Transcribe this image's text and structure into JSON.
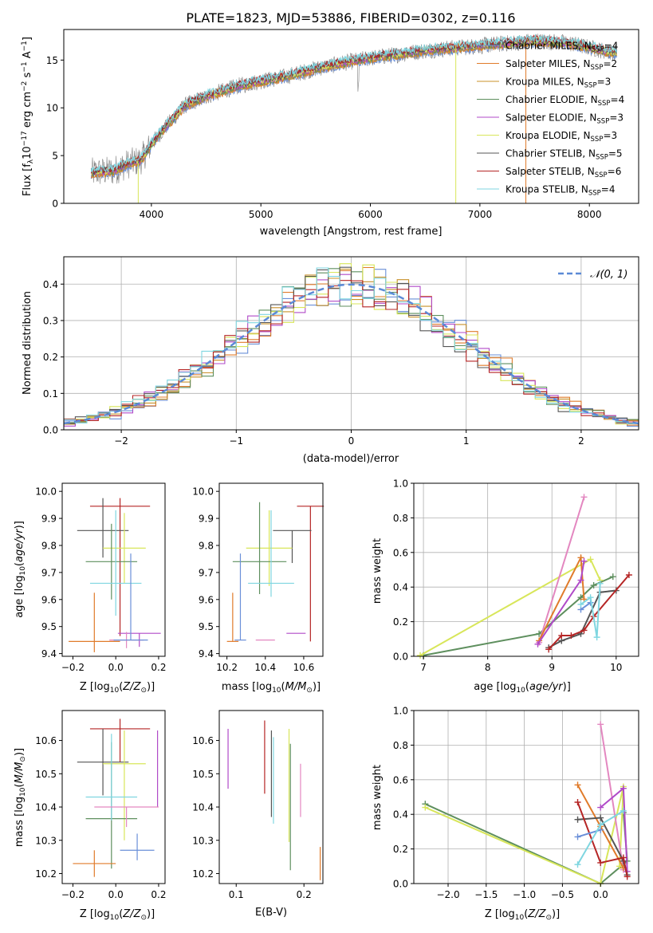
{
  "chart_data": [
    {
      "id": "spectrum",
      "type": "line",
      "title": "PLATE=1823, MJD=53886, FIBERID=0302, z=0.116",
      "xlabel": "wavelength [Angstrom, rest frame]",
      "ylabel": "Flux [f$_\\lambda$10$^{-17}$ erg cm$^{-2}$ s$^{-1}$ A$^{-1}$]",
      "ylabel_parts": {
        "a": "Flux [f",
        "b": "λ",
        "c": "10",
        "d": "−17",
        "e": " erg cm",
        "f": "−2",
        "g": " s",
        "h": "−1",
        "i": " A",
        "j": "−1",
        "k": "]"
      },
      "xlim": [
        3200,
        8450
      ],
      "ylim": [
        0,
        18.2
      ],
      "xticks": [
        4000,
        5000,
        6000,
        7000,
        8000
      ],
      "yticks": [
        0,
        5,
        10,
        15
      ],
      "legend_position": "upper right",
      "series": [
        {
          "name": "Chabrier MILES, N$_{SSP}$=4",
          "label": "Chabrier MILES, N",
          "sub": "SSP",
          "n": "=4",
          "color": "#6a8fd8"
        },
        {
          "name": "Salpeter MILES, N$_{SSP}$=2",
          "label": "Salpeter MILES, N",
          "sub": "SSP",
          "n": "=2",
          "color": "#e07b2a"
        },
        {
          "name": "Kroupa MILES, N$_{SSP}$=3",
          "label": "Kroupa MILES, N",
          "sub": "SSP",
          "n": "=3",
          "color": "#c8902a"
        },
        {
          "name": "Chabrier ELODIE, N$_{SSP}$=4",
          "label": "Chabrier ELODIE, N",
          "sub": "SSP",
          "n": "=4",
          "color": "#5e8f5e"
        },
        {
          "name": "Salpeter ELODIE, N$_{SSP}$=3",
          "label": "Salpeter ELODIE, N",
          "sub": "SSP",
          "n": "=3",
          "color": "#b04ac8"
        },
        {
          "name": "Kroupa ELODIE, N$_{SSP}$=3",
          "label": "Kroupa ELODIE, N",
          "sub": "SSP",
          "n": "=3",
          "color": "#d8e65a"
        },
        {
          "name": "Chabrier STELIB, N$_{SSP}$=5",
          "label": "Chabrier STELIB, N",
          "sub": "SSP",
          "n": "=5",
          "color": "#555555"
        },
        {
          "name": "Salpeter STELIB, N$_{SSP}$=6",
          "label": "Salpeter STELIB, N",
          "sub": "SSP",
          "n": "=6",
          "color": "#b52525"
        },
        {
          "name": "Kroupa STELIB, N$_{SSP}$=4",
          "label": "Kroupa STELIB, N",
          "sub": "SSP",
          "n": "=4",
          "color": "#7fd6e0"
        }
      ],
      "continuum_points": {
        "x": [
          3450,
          3650,
          3800,
          3900,
          4000,
          4100,
          4300,
          4500,
          4800,
          5000,
          5200,
          5500,
          5800,
          6000,
          6200,
          6500,
          6800,
          7000,
          7200,
          7500,
          7800,
          8000,
          8200
        ],
        "y": [
          3.2,
          3.4,
          4.2,
          4.5,
          6.2,
          7.6,
          10.2,
          11.2,
          12.3,
          12.8,
          13.2,
          14.1,
          14.8,
          15.2,
          15.5,
          16.0,
          16.3,
          16.5,
          16.7,
          17.0,
          16.8,
          16.3,
          15.8
        ]
      },
      "data_color": "#808080"
    },
    {
      "id": "residuals",
      "type": "line",
      "xlabel": "(data-model)/error",
      "ylabel": "Normed distribution",
      "xlim": [
        -2.5,
        2.5
      ],
      "ylim": [
        0,
        0.475
      ],
      "xticks": [
        -2,
        -1,
        0,
        1,
        2
      ],
      "yticks": [
        0.0,
        0.1,
        0.2,
        0.3,
        0.4
      ],
      "grid": true,
      "legend": "𝒩(0, 1)",
      "legend_position": "upper right",
      "reference_curve": {
        "mu": 0,
        "sigma": 1,
        "color": "#5b8ad6"
      },
      "bin_width": 0.1
    },
    {
      "id": "age_vs_Z",
      "type": "scatter",
      "xlabel": "Z [log$_{10}$($Z/Z_\\odot$)]",
      "ylabel": "age  [log$_{10}$($age/yr$)]",
      "xlim": [
        -0.25,
        0.23
      ],
      "ylim": [
        9.39,
        10.03
      ],
      "xticks": [
        -0.2,
        0.0,
        0.2
      ],
      "yticks": [
        9.4,
        9.5,
        9.6,
        9.7,
        9.8,
        9.9,
        10.0
      ],
      "crosses": [
        {
          "x": 0.02,
          "xerr": 0.14,
          "y": 9.945,
          "yerr": [
            0.48,
            0.03
          ],
          "color": "#b52525"
        },
        {
          "x": -0.06,
          "xerr": 0.12,
          "y": 9.855,
          "yerr": [
            0.1,
            0.12
          ],
          "color": "#555555"
        },
        {
          "x": 0.04,
          "xerr": 0.1,
          "y": 9.79,
          "yerr": [
            0.13,
            0.13
          ],
          "color": "#d8e65a"
        },
        {
          "x": -0.02,
          "xerr": 0.12,
          "y": 9.74,
          "yerr": [
            0.14,
            0.14
          ],
          "color": "#5e8f5e"
        },
        {
          "x": 0.0,
          "xerr": 0.12,
          "y": 9.66,
          "yerr": [
            0.12,
            0.27
          ],
          "color": "#7fd6e0"
        },
        {
          "x": 0.11,
          "xerr": 0.1,
          "y": 9.475,
          "yerr": [
            0.05,
            0.0
          ],
          "color": "#b04ac8"
        },
        {
          "x": -0.1,
          "xerr": 0.12,
          "y": 9.445,
          "yerr": [
            0.04,
            0.18
          ],
          "color": "#e07b2a"
        },
        {
          "x": 0.05,
          "xerr": 0.08,
          "y": 9.45,
          "yerr": [
            0.03,
            0.03
          ],
          "color": "#e387c0"
        },
        {
          "x": 0.07,
          "xerr": 0.08,
          "y": 9.45,
          "yerr": [
            0.0,
            0.32
          ],
          "color": "#6a8fd8"
        }
      ]
    },
    {
      "id": "age_vs_mass",
      "type": "scatter",
      "xlabel": "mass [log$_{10}$($M/M_\\odot$)]",
      "xlim": [
        10.16,
        10.7
      ],
      "ylim": [
        9.39,
        10.03
      ],
      "xticks": [
        10.2,
        10.4,
        10.6
      ],
      "yticks": [
        9.4,
        9.5,
        9.6,
        9.7,
        9.8,
        9.9,
        10.0
      ],
      "crosses": [
        {
          "x": 10.635,
          "xerr": 0.07,
          "y": 9.945,
          "yerr": [
            0.5,
            0.0
          ],
          "color": "#b52525"
        },
        {
          "x": 10.54,
          "xerr": 0.1,
          "y": 9.855,
          "yerr": [
            0.12,
            0.0
          ],
          "color": "#555555"
        },
        {
          "x": 10.42,
          "xerr": 0.12,
          "y": 9.79,
          "yerr": [
            0.14,
            0.14
          ],
          "color": "#d8e65a"
        },
        {
          "x": 10.37,
          "xerr": 0.14,
          "y": 9.74,
          "yerr": [
            0.12,
            0.22
          ],
          "color": "#5e8f5e"
        },
        {
          "x": 10.43,
          "xerr": 0.12,
          "y": 9.66,
          "yerr": [
            0.05,
            0.27
          ],
          "color": "#7fd6e0"
        },
        {
          "x": 10.56,
          "xerr": 0.05,
          "y": 9.475,
          "yerr": [
            0.0,
            0.0
          ],
          "color": "#b04ac8"
        },
        {
          "x": 10.23,
          "xerr": 0.03,
          "y": 9.445,
          "yerr": [
            0.0,
            0.18
          ],
          "color": "#e07b2a"
        },
        {
          "x": 10.4,
          "xerr": 0.05,
          "y": 9.45,
          "yerr": [
            0.0,
            0.0
          ],
          "color": "#e387c0"
        },
        {
          "x": 10.27,
          "xerr": 0.03,
          "y": 9.45,
          "yerr": [
            0.0,
            0.32
          ],
          "color": "#6a8fd8"
        }
      ]
    },
    {
      "id": "mass_weight_vs_age",
      "type": "line",
      "xlabel": "age  [log$_{10}$($age/yr$)]",
      "ylabel": "mass weight",
      "xlim": [
        6.85,
        10.35
      ],
      "ylim": [
        0,
        1.0
      ],
      "xticks": [
        7,
        8,
        9,
        10
      ],
      "yticks": [
        0.0,
        0.2,
        0.4,
        0.6,
        0.8,
        1.0
      ],
      "grid": true,
      "series": [
        {
          "color": "#5e8f5e",
          "x": [
            7.0,
            8.8,
            9.45,
            9.65,
            9.95
          ],
          "y": [
            0.005,
            0.13,
            0.34,
            0.41,
            0.46
          ]
        },
        {
          "color": "#d8e65a",
          "x": [
            6.95,
            9.6,
            9.75
          ],
          "y": [
            0.005,
            0.56,
            0.44
          ]
        },
        {
          "color": "#e387c0",
          "x": [
            8.8,
            9.5
          ],
          "y": [
            0.08,
            0.92
          ]
        },
        {
          "color": "#e07b2a",
          "x": [
            8.8,
            9.45,
            9.5
          ],
          "y": [
            0.09,
            0.57,
            0.33
          ]
        },
        {
          "color": "#b04ac8",
          "x": [
            8.78,
            9.45,
            9.5
          ],
          "y": [
            0.07,
            0.44,
            0.55
          ]
        },
        {
          "color": "#555555",
          "x": [
            8.95,
            9.15,
            9.45,
            9.75,
            10.0
          ],
          "y": [
            0.05,
            0.09,
            0.13,
            0.37,
            0.38
          ]
        },
        {
          "color": "#b52525",
          "x": [
            8.95,
            9.15,
            9.3,
            9.5,
            9.65,
            10.2
          ],
          "y": [
            0.04,
            0.12,
            0.12,
            0.15,
            0.23,
            0.47
          ]
        },
        {
          "color": "#6a8fd8",
          "x": [
            9.45,
            9.6
          ],
          "y": [
            0.27,
            0.31
          ]
        },
        {
          "color": "#7fd6e0",
          "x": [
            9.45,
            9.6,
            9.7,
            9.75
          ],
          "y": [
            0.3,
            0.34,
            0.11,
            0.42
          ]
        }
      ]
    },
    {
      "id": "mass_vs_Z",
      "type": "scatter",
      "xlabel": "Z [log$_{10}$($Z/Z_\\odot$)]",
      "ylabel": "mass [log$_{10}$($M/M_\\odot$)]",
      "xlim": [
        -0.25,
        0.23
      ],
      "ylim": [
        10.17,
        10.69
      ],
      "xticks": [
        -0.2,
        0.0,
        0.2
      ],
      "yticks": [
        10.2,
        10.3,
        10.4,
        10.5,
        10.6
      ],
      "crosses": [
        {
          "x": 0.02,
          "xerr": 0.14,
          "y": 10.635,
          "yerr": [
            0.1,
            0.03
          ],
          "color": "#b52525"
        },
        {
          "x": -0.06,
          "xerr": 0.12,
          "y": 10.535,
          "yerr": [
            0.1,
            0.1
          ],
          "color": "#555555"
        },
        {
          "x": 0.04,
          "xerr": 0.1,
          "y": 10.53,
          "yerr": [
            0.23,
            0.1
          ],
          "color": "#d8e65a"
        },
        {
          "x": -0.02,
          "xerr": 0.12,
          "y": 10.365,
          "yerr": [
            0.15,
            0.23
          ],
          "color": "#5e8f5e"
        },
        {
          "x": -0.02,
          "xerr": 0.12,
          "y": 10.43,
          "yerr": [
            0.07,
            0.19
          ],
          "color": "#7fd6e0"
        },
        {
          "x": 0.195,
          "xerr": 0.0,
          "y": 10.53,
          "yerr": [
            0.13,
            0.1
          ],
          "color": "#b04ac8"
        },
        {
          "x": -0.1,
          "xerr": 0.1,
          "y": 10.23,
          "yerr": [
            0.04,
            0.04
          ],
          "color": "#e07b2a"
        },
        {
          "x": 0.05,
          "xerr": 0.15,
          "y": 10.4,
          "yerr": [
            0.06,
            0.0
          ],
          "color": "#e387c0"
        },
        {
          "x": 0.1,
          "xerr": 0.08,
          "y": 10.27,
          "yerr": [
            0.03,
            0.05
          ],
          "color": "#6a8fd8"
        }
      ]
    },
    {
      "id": "mass_vs_EBV",
      "type": "scatter",
      "xlabel": "E(B-V)",
      "xlim": [
        0.075,
        0.228
      ],
      "ylim": [
        10.17,
        10.69
      ],
      "xticks": [
        0.1,
        0.2
      ],
      "yticks": [
        10.2,
        10.3,
        10.4,
        10.5,
        10.6
      ],
      "crosses": [
        {
          "x": 0.088,
          "y": 10.545,
          "yerr": [
            0.09,
            0.09
          ],
          "color": "#b04ac8"
        },
        {
          "x": 0.142,
          "y": 10.55,
          "yerr": [
            0.11,
            0.11
          ],
          "color": "#b52525"
        },
        {
          "x": 0.152,
          "y": 10.5,
          "yerr": [
            0.13,
            0.13
          ],
          "color": "#555555"
        },
        {
          "x": 0.155,
          "y": 10.48,
          "yerr": [
            0.13,
            0.13
          ],
          "color": "#7fd6e0"
        },
        {
          "x": 0.178,
          "y": 10.465,
          "yerr": [
            0.17,
            0.17
          ],
          "color": "#d8e65a"
        },
        {
          "x": 0.18,
          "y": 10.4,
          "yerr": [
            0.19,
            0.19
          ],
          "color": "#5e8f5e"
        },
        {
          "x": 0.195,
          "y": 10.45,
          "yerr": [
            0.08,
            0.08
          ],
          "color": "#e387c0"
        },
        {
          "x": 0.224,
          "y": 10.23,
          "yerr": [
            0.05,
            0.05
          ],
          "color": "#e07b2a"
        }
      ]
    },
    {
      "id": "mass_weight_vs_Z",
      "type": "line",
      "xlabel": "Z [log$_{10}$($Z/Z_\\odot$)]",
      "ylabel": "mass weight",
      "xlim": [
        -2.45,
        0.5
      ],
      "ylim": [
        0,
        1.0
      ],
      "xticks": [
        -2.0,
        -1.5,
        -1.0,
        -0.5,
        0.0
      ],
      "yticks": [
        0.0,
        0.2,
        0.4,
        0.6,
        0.8,
        1.0
      ],
      "grid": true,
      "series": [
        {
          "color": "#5e8f5e",
          "x": [
            -2.3,
            0.0,
            0.35,
            0.3
          ],
          "y": [
            0.46,
            0.0,
            0.13,
            0.41
          ]
        },
        {
          "color": "#d8e65a",
          "x": [
            -2.3,
            0.0,
            0.3,
            0.25
          ],
          "y": [
            0.44,
            0.0,
            0.56,
            0.1
          ]
        },
        {
          "color": "#e387c0",
          "x": [
            0.0,
            0.3
          ],
          "y": [
            0.92,
            0.08
          ]
        },
        {
          "color": "#e07b2a",
          "x": [
            -0.3,
            0.0,
            0.3
          ],
          "y": [
            0.57,
            0.33,
            0.09
          ]
        },
        {
          "color": "#b04ac8",
          "x": [
            0.0,
            0.3,
            0.35
          ],
          "y": [
            0.44,
            0.55,
            0.07
          ]
        },
        {
          "color": "#555555",
          "x": [
            -0.3,
            0.0,
            0.3,
            0.35
          ],
          "y": [
            0.37,
            0.38,
            0.13,
            0.05
          ]
        },
        {
          "color": "#b52525",
          "x": [
            -0.3,
            0.0,
            0.3,
            0.35
          ],
          "y": [
            0.47,
            0.12,
            0.15,
            0.04
          ]
        },
        {
          "color": "#6a8fd8",
          "x": [
            -0.3,
            0.0
          ],
          "y": [
            0.27,
            0.31
          ]
        },
        {
          "color": "#7fd6e0",
          "x": [
            -0.3,
            0.0,
            0.3
          ],
          "y": [
            0.11,
            0.34,
            0.42
          ]
        }
      ]
    }
  ]
}
